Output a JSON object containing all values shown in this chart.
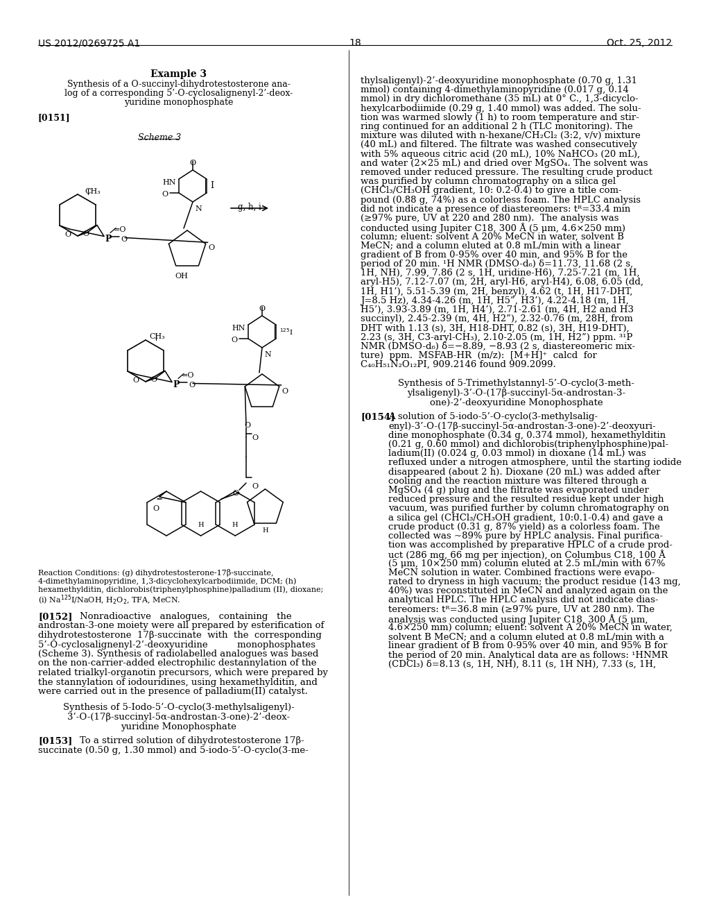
{
  "background_color": "#ffffff",
  "header_left": "US 2012/0269725 A1",
  "header_right": "Oct. 25, 2012",
  "page_number": "18"
}
